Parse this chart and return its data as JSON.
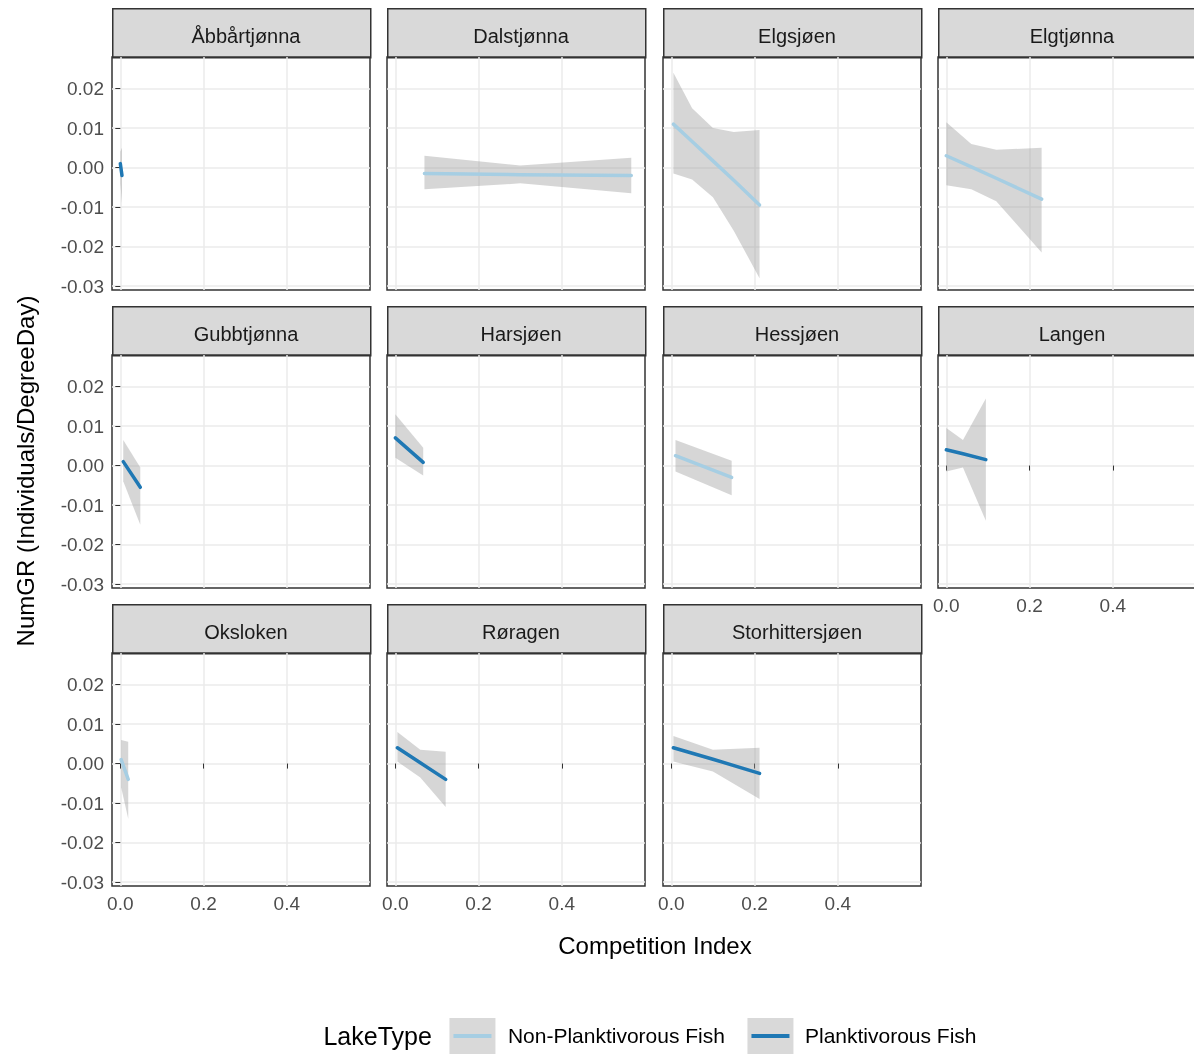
{
  "chart_data": [
    {
      "type": "line",
      "title": "Åbbårtjønna",
      "tick_labels": "y",
      "grid": true,
      "marker": "none",
      "line_style": "solid",
      "xlim": [
        -0.02,
        0.6
      ],
      "ylim": [
        -0.031,
        0.028
      ],
      "xticks": [
        {
          "value": 0,
          "label": null
        },
        {
          "value": 0.2,
          "label": null
        },
        {
          "value": 0.4,
          "label": null
        }
      ],
      "yticks": [
        {
          "value": -0.03,
          "label": "-0.03"
        },
        {
          "value": -0.02,
          "label": "-0.02"
        },
        {
          "value": -0.01,
          "label": "-0.01"
        },
        {
          "value": 0,
          "label": "0.00"
        },
        {
          "value": 0.01,
          "label": "0.01"
        },
        {
          "value": 0.02,
          "label": "0.02"
        }
      ],
      "series": [
        {
          "name": "Planktivorous Fish",
          "color": "#1f78b4",
          "x": [
            0.0,
            0.004
          ],
          "values": [
            0.001,
            -0.002
          ],
          "lower": [
            -0.004,
            -0.009
          ],
          "upper": [
            0.004,
            0.005
          ]
        }
      ]
    },
    {
      "type": "line",
      "title": "Dalstjønna",
      "tick_labels": false,
      "grid": true,
      "marker": "none",
      "line_style": "solid",
      "xlim": [
        -0.02,
        0.6
      ],
      "ylim": [
        -0.031,
        0.028
      ],
      "xticks": [
        {
          "value": 0,
          "label": null
        },
        {
          "value": 0.2,
          "label": null
        },
        {
          "value": 0.4,
          "label": null
        }
      ],
      "yticks": [
        {
          "value": -0.03,
          "label": null
        },
        {
          "value": -0.02,
          "label": null
        },
        {
          "value": -0.01,
          "label": null
        },
        {
          "value": 0,
          "label": null
        },
        {
          "value": 0.01,
          "label": null
        },
        {
          "value": 0.02,
          "label": null
        }
      ],
      "series": [
        {
          "name": "Non-Planktivorous Fish",
          "color": "#a6cee3",
          "x": [
            0.07,
            0.3,
            0.567
          ],
          "values": [
            -0.0015,
            -0.0018,
            -0.002
          ],
          "lower": [
            -0.0055,
            -0.004,
            -0.0065
          ],
          "upper": [
            0.003,
            0.0005,
            0.0025
          ]
        }
      ]
    },
    {
      "type": "line",
      "title": "Elgsjøen",
      "tick_labels": false,
      "grid": true,
      "marker": "none",
      "line_style": "solid",
      "xlim": [
        -0.02,
        0.6
      ],
      "ylim": [
        -0.031,
        0.028
      ],
      "xticks": [
        {
          "value": 0,
          "label": null
        },
        {
          "value": 0.2,
          "label": null
        },
        {
          "value": 0.4,
          "label": null
        }
      ],
      "yticks": [
        {
          "value": -0.03,
          "label": null
        },
        {
          "value": -0.02,
          "label": null
        },
        {
          "value": -0.01,
          "label": null
        },
        {
          "value": 0,
          "label": null
        },
        {
          "value": 0.01,
          "label": null
        },
        {
          "value": 0.02,
          "label": null
        }
      ],
      "series": [
        {
          "name": "Non-Planktivorous Fish",
          "color": "#a6cee3",
          "x": [
            0.005,
            0.05,
            0.1,
            0.15,
            0.212
          ],
          "values": [
            0.011,
            0.0066,
            0.0017,
            -0.0032,
            -0.0095
          ],
          "lower": [
            -0.0015,
            -0.003,
            -0.0075,
            -0.016,
            -0.028
          ],
          "upper": [
            0.024,
            0.015,
            0.01,
            0.009,
            0.0095
          ]
        }
      ]
    },
    {
      "type": "line",
      "title": "Elgtjønna",
      "tick_labels": false,
      "grid": true,
      "marker": "none",
      "line_style": "solid",
      "xlim": [
        -0.02,
        0.6
      ],
      "ylim": [
        -0.031,
        0.028
      ],
      "xticks": [
        {
          "value": 0,
          "label": null
        },
        {
          "value": 0.2,
          "label": null
        },
        {
          "value": 0.4,
          "label": null
        }
      ],
      "yticks": [
        {
          "value": -0.03,
          "label": null
        },
        {
          "value": -0.02,
          "label": null
        },
        {
          "value": -0.01,
          "label": null
        },
        {
          "value": 0,
          "label": null
        },
        {
          "value": 0.01,
          "label": null
        },
        {
          "value": 0.02,
          "label": null
        }
      ],
      "series": [
        {
          "name": "Non-Planktivorous Fish",
          "color": "#a6cee3",
          "x": [
            0.0,
            0.06,
            0.12,
            0.229
          ],
          "values": [
            0.003,
            0.0002,
            -0.0027,
            -0.008
          ],
          "lower": [
            -0.0045,
            -0.0055,
            -0.0085,
            -0.0215
          ],
          "upper": [
            0.0115,
            0.006,
            0.0045,
            0.005
          ]
        }
      ]
    },
    {
      "type": "line",
      "title": "Gubbtjønna",
      "tick_labels": "y",
      "ylabel": "NumGR (Individuals/DegreeDay)",
      "grid": true,
      "marker": "none",
      "line_style": "solid",
      "xlim": [
        -0.02,
        0.6
      ],
      "ylim": [
        -0.031,
        0.028
      ],
      "xticks": [
        {
          "value": 0,
          "label": null
        },
        {
          "value": 0.2,
          "label": null
        },
        {
          "value": 0.4,
          "label": null
        }
      ],
      "yticks": [
        {
          "value": -0.03,
          "label": "-0.03"
        },
        {
          "value": -0.02,
          "label": "-0.02"
        },
        {
          "value": -0.01,
          "label": "-0.01"
        },
        {
          "value": 0,
          "label": "0.00"
        },
        {
          "value": 0.01,
          "label": "0.01"
        },
        {
          "value": 0.02,
          "label": "0.02"
        }
      ],
      "series": [
        {
          "name": "Planktivorous Fish",
          "color": "#1f78b4",
          "x": [
            0.007,
            0.048
          ],
          "values": [
            0.001,
            -0.0055
          ],
          "lower": [
            -0.004,
            -0.015
          ],
          "upper": [
            0.0065,
            -0.0005
          ]
        }
      ]
    },
    {
      "type": "line",
      "title": "Harsjøen",
      "tick_labels": false,
      "grid": true,
      "marker": "none",
      "line_style": "solid",
      "xlim": [
        -0.02,
        0.6
      ],
      "ylim": [
        -0.031,
        0.028
      ],
      "xticks": [
        {
          "value": 0,
          "label": null
        },
        {
          "value": 0.2,
          "label": null
        },
        {
          "value": 0.4,
          "label": null
        }
      ],
      "yticks": [
        {
          "value": -0.03,
          "label": null
        },
        {
          "value": -0.02,
          "label": null
        },
        {
          "value": -0.01,
          "label": null
        },
        {
          "value": 0,
          "label": null
        },
        {
          "value": 0.01,
          "label": null
        },
        {
          "value": 0.02,
          "label": null
        }
      ],
      "series": [
        {
          "name": "Planktivorous Fish",
          "color": "#1f78b4",
          "x": [
            0.0,
            0.067
          ],
          "values": [
            0.007,
            0.0008
          ],
          "lower": [
            0.002,
            -0.0025
          ],
          "upper": [
            0.013,
            0.0045
          ]
        }
      ]
    },
    {
      "type": "line",
      "title": "Hessjøen",
      "tick_labels": false,
      "grid": true,
      "marker": "none",
      "line_style": "solid",
      "xlim": [
        -0.02,
        0.6
      ],
      "ylim": [
        -0.031,
        0.028
      ],
      "xticks": [
        {
          "value": 0,
          "label": null
        },
        {
          "value": 0.2,
          "label": null
        },
        {
          "value": 0.4,
          "label": null
        }
      ],
      "yticks": [
        {
          "value": -0.03,
          "label": null
        },
        {
          "value": -0.02,
          "label": null
        },
        {
          "value": -0.01,
          "label": null
        },
        {
          "value": 0,
          "label": null
        },
        {
          "value": 0.01,
          "label": null
        },
        {
          "value": 0.02,
          "label": null
        }
      ],
      "series": [
        {
          "name": "Non-Planktivorous Fish",
          "color": "#a6cee3",
          "x": [
            0.01,
            0.145
          ],
          "values": [
            0.0025,
            -0.003
          ],
          "lower": [
            -0.0015,
            -0.0075
          ],
          "upper": [
            0.0065,
            0.0012
          ]
        }
      ]
    },
    {
      "type": "line",
      "title": "Langen",
      "tick_labels": "x",
      "grid": true,
      "marker": "none",
      "line_style": "solid",
      "xlim": [
        -0.02,
        0.6
      ],
      "ylim": [
        -0.031,
        0.028
      ],
      "xticks": [
        {
          "value": 0,
          "label": "0.0"
        },
        {
          "value": 0.2,
          "label": "0.2"
        },
        {
          "value": 0.4,
          "label": "0.4"
        }
      ],
      "yticks": [
        {
          "value": -0.03,
          "label": null
        },
        {
          "value": -0.02,
          "label": null
        },
        {
          "value": -0.01,
          "label": null
        },
        {
          "value": 0,
          "label": null
        },
        {
          "value": 0.01,
          "label": null
        },
        {
          "value": 0.02,
          "label": null
        }
      ],
      "series": [
        {
          "name": "Planktivorous Fish",
          "color": "#1f78b4",
          "x": [
            0.0,
            0.04,
            0.095
          ],
          "values": [
            0.004,
            0.003,
            0.0015
          ],
          "lower": [
            -0.0015,
            -0.0005,
            -0.014
          ],
          "upper": [
            0.0095,
            0.0065,
            0.017
          ]
        }
      ]
    },
    {
      "type": "line",
      "title": "Oksloken",
      "grid": true,
      "marker": "none",
      "line_style": "solid",
      "xlim": [
        -0.02,
        0.6
      ],
      "ylim": [
        -0.031,
        0.028
      ],
      "xticks": [
        {
          "value": 0,
          "label": "0.0"
        },
        {
          "value": 0.2,
          "label": "0.2"
        },
        {
          "value": 0.4,
          "label": "0.4"
        }
      ],
      "yticks": [
        {
          "value": -0.03,
          "label": "-0.03"
        },
        {
          "value": -0.02,
          "label": "-0.02"
        },
        {
          "value": -0.01,
          "label": "-0.01"
        },
        {
          "value": 0,
          "label": "0.00"
        },
        {
          "value": 0.01,
          "label": "0.01"
        },
        {
          "value": 0.02,
          "label": "0.02"
        }
      ],
      "series": [
        {
          "name": "Non-Planktivorous Fish",
          "color": "#a6cee3",
          "x": [
            0.002,
            0.019
          ],
          "values": [
            0.001,
            -0.004
          ],
          "lower": [
            -0.006,
            -0.014
          ],
          "upper": [
            0.006,
            0.0055
          ]
        }
      ]
    },
    {
      "type": "line",
      "title": "Røragen",
      "tick_labels": "x",
      "grid": true,
      "marker": "none",
      "line_style": "solid",
      "xlim": [
        -0.02,
        0.6
      ],
      "ylim": [
        -0.031,
        0.028
      ],
      "xticks": [
        {
          "value": 0,
          "label": "0.0"
        },
        {
          "value": 0.2,
          "label": "0.2"
        },
        {
          "value": 0.4,
          "label": "0.4"
        }
      ],
      "yticks": [
        {
          "value": -0.03,
          "label": null
        },
        {
          "value": -0.02,
          "label": null
        },
        {
          "value": -0.01,
          "label": null
        },
        {
          "value": 0,
          "label": null
        },
        {
          "value": 0.01,
          "label": null
        },
        {
          "value": 0.02,
          "label": null
        }
      ],
      "series": [
        {
          "name": "Planktivorous Fish",
          "color": "#1f78b4",
          "x": [
            0.005,
            0.06,
            0.121
          ],
          "values": [
            0.004,
            0.0002,
            -0.004
          ],
          "lower": [
            0.0005,
            -0.0035,
            -0.011
          ],
          "upper": [
            0.008,
            0.0035,
            0.003
          ]
        }
      ]
    },
    {
      "type": "line",
      "title": "Storhittersjøen",
      "xlabel": "Competition Index",
      "legend": "bottom",
      "legend_title": "LakeType",
      "tick_labels": "x",
      "grid": true,
      "marker": "none",
      "line_style": "solid",
      "xlim": [
        -0.02,
        0.6
      ],
      "ylim": [
        -0.031,
        0.028
      ],
      "xticks": [
        {
          "value": 0,
          "label": "0.0"
        },
        {
          "value": 0.2,
          "label": "0.2"
        },
        {
          "value": 0.4,
          "label": "0.4"
        }
      ],
      "yticks": [
        {
          "value": -0.03,
          "label": null
        },
        {
          "value": -0.02,
          "label": null
        },
        {
          "value": -0.01,
          "label": null
        },
        {
          "value": 0,
          "label": null
        },
        {
          "value": 0.01,
          "label": null
        },
        {
          "value": 0.02,
          "label": null
        }
      ],
      "series": [
        {
          "name": "Planktivorous Fish",
          "color": "#1f78b4",
          "x": [
            0.005,
            0.1,
            0.212
          ],
          "values": [
            0.004,
            0.0011,
            -0.0025
          ],
          "lower": [
            0.0005,
            -0.002,
            -0.009
          ],
          "upper": [
            0.007,
            0.0035,
            0.004
          ]
        }
      ]
    }
  ]
}
